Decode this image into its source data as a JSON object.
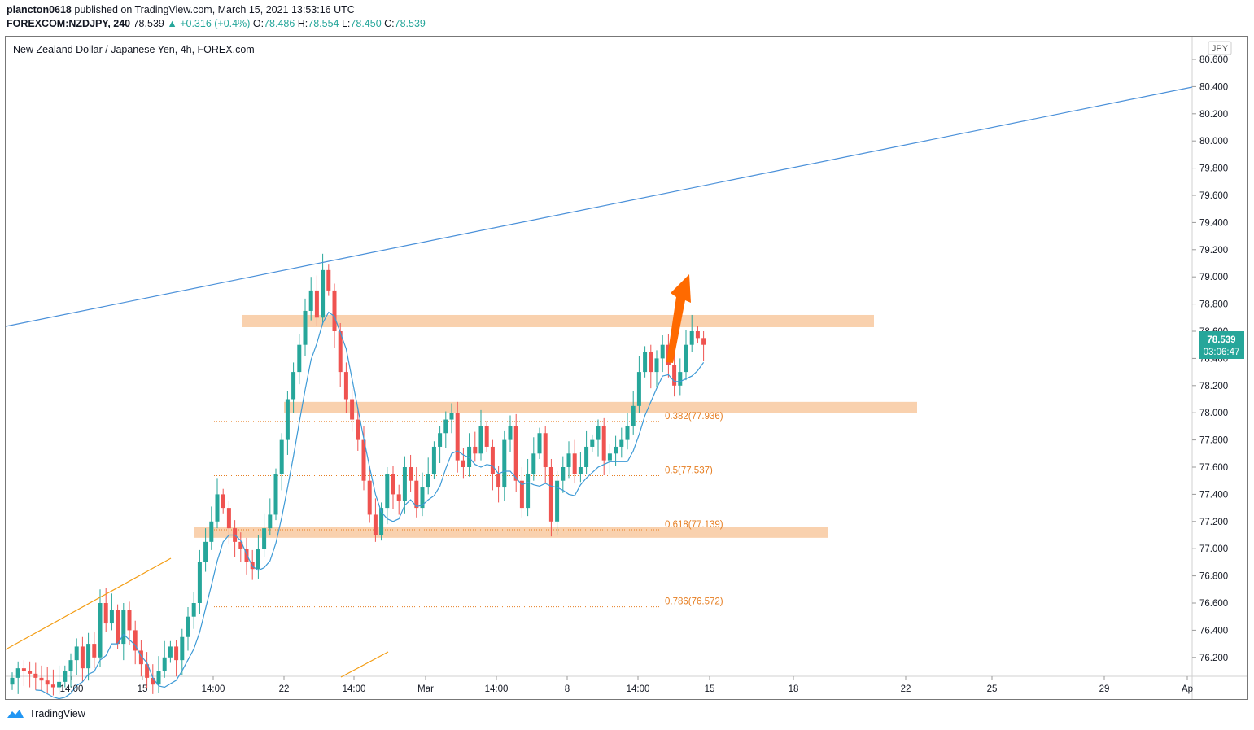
{
  "header": {
    "user": "plancton0618",
    "published": "published on TradingView.com, March 15, 2021 13:53:16 UTC",
    "symbol": "FOREXCOM:NZDJPY, 240",
    "last": "78.539",
    "change": "+0.316 (+0.4%)",
    "o_label": "O:",
    "o": "78.486",
    "h_label": "H:",
    "h": "78.554",
    "l_label": "L:",
    "l": "78.450",
    "c_label": "C:",
    "c": "78.539"
  },
  "footer": {
    "brand": "TradingView"
  },
  "colors": {
    "up": "#26a69a",
    "down": "#ef5350",
    "zone": "#f8c9a0",
    "fib": "#e67e22",
    "trend": "#4a90d9",
    "arrow": "#ff6a00",
    "ma": "#3d9ad6"
  },
  "chart_data": {
    "type": "candlestick",
    "title": "New Zealand Dollar / Japanese Yen, 4h, FOREX.com",
    "currency": "JPY",
    "ylim": [
      76.0,
      80.7
    ],
    "y_ticks": [
      "80.600",
      "80.400",
      "80.200",
      "80.000",
      "79.800",
      "79.600",
      "79.400",
      "79.200",
      "79.000",
      "78.800",
      "78.600",
      "78.400",
      "78.200",
      "78.000",
      "77.800",
      "77.600",
      "77.400",
      "77.200",
      "77.000",
      "76.800",
      "76.600",
      "76.400",
      "76.200"
    ],
    "x_ticks": [
      "14:00",
      "15",
      "14:00",
      "22",
      "14:00",
      "Mar",
      "14:00",
      "8",
      "14:00",
      "15",
      "18",
      "22",
      "25",
      "29",
      "Ap"
    ],
    "last_price": "78.539",
    "countdown": "03:06:47",
    "fib_levels": [
      {
        "label": "0.382(77.936)",
        "value": 77.936
      },
      {
        "label": "0.5(77.537)",
        "value": 77.537
      },
      {
        "label": "0.618(77.139)",
        "value": 77.139
      },
      {
        "label": "0.786(76.572)",
        "value": 76.572
      }
    ],
    "zones": [
      {
        "top": 78.72,
        "bottom": 78.63
      },
      {
        "top": 78.08,
        "bottom": 78.0
      },
      {
        "top": 77.16,
        "bottom": 77.08
      }
    ],
    "closes": [
      76.05,
      76.12,
      76.1,
      76.08,
      76.05,
      76.03,
      76.0,
      75.98,
      76.02,
      76.1,
      76.18,
      76.28,
      76.12,
      76.3,
      76.2,
      76.6,
      76.45,
      76.55,
      76.3,
      76.55,
      76.4,
      76.25,
      76.15,
      76.05,
      76.0,
      76.1,
      76.2,
      76.28,
      76.18,
      76.35,
      76.5,
      76.6,
      76.9,
      77.05,
      77.2,
      77.4,
      77.3,
      77.15,
      77.05,
      77.0,
      76.9,
      76.85,
      77.0,
      77.15,
      77.25,
      77.55,
      77.8,
      78.1,
      78.3,
      78.5,
      78.75,
      78.9,
      78.7,
      79.05,
      78.9,
      78.6,
      78.3,
      78.1,
      77.95,
      77.8,
      77.5,
      77.25,
      77.1,
      77.3,
      77.55,
      77.4,
      77.35,
      77.6,
      77.5,
      77.3,
      77.45,
      77.55,
      77.75,
      77.85,
      77.95,
      78.0,
      77.65,
      77.6,
      77.75,
      77.7,
      77.9,
      77.75,
      77.55,
      77.45,
      77.8,
      77.9,
      77.5,
      77.3,
      77.55,
      77.7,
      77.85,
      77.6,
      77.2,
      77.5,
      77.6,
      77.7,
      77.55,
      77.6,
      77.75,
      77.8,
      77.9,
      77.65,
      77.7,
      77.75,
      77.8,
      77.9,
      78.05,
      78.3,
      78.45,
      78.3,
      78.4,
      78.5,
      78.35,
      78.2,
      78.3,
      78.5,
      78.6,
      78.55,
      78.5
    ]
  }
}
